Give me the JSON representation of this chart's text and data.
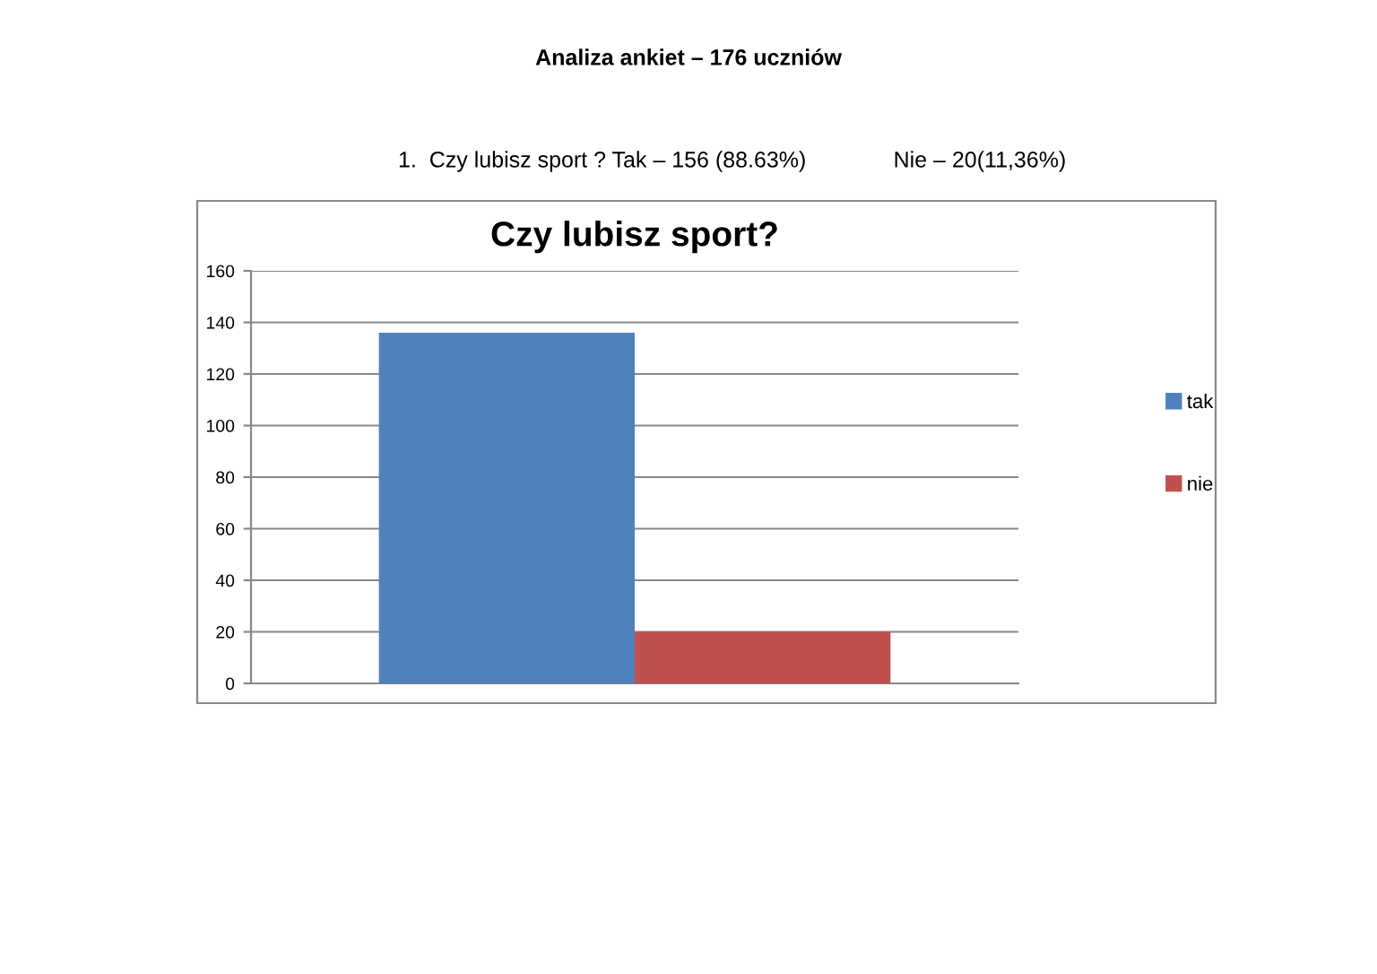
{
  "chart_data": {
    "type": "bar",
    "title": "Czy lubisz sport?",
    "categories": [
      null
    ],
    "series": [
      {
        "name": "tak",
        "color": "#4f81bd",
        "values": [
          136
        ]
      },
      {
        "name": "nie",
        "color": "#c0504d",
        "values": [
          20
        ]
      }
    ],
    "ylim": [
      0,
      160
    ],
    "yticks": [
      0,
      20,
      40,
      60,
      80,
      100,
      120,
      140,
      160
    ],
    "grid": "y",
    "legend": "right",
    "annotations": [
      "Analiza ankiet – 176 uczniów",
      "1.  Czy lubisz sport ? Tak – 156 (88.63%)              Nie – 20(11,36%)"
    ]
  }
}
